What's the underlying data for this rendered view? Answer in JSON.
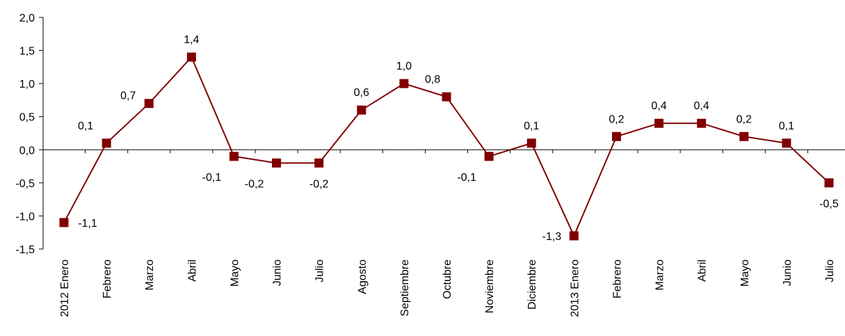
{
  "chart_data": {
    "type": "line",
    "title": "",
    "xlabel": "",
    "ylabel": "",
    "ylim": [
      -1.5,
      2.0
    ],
    "y_ticks": [
      "2,0",
      "1,5",
      "1,0",
      "0,5",
      "0,0",
      "-0,5",
      "-1,0",
      "-1,5"
    ],
    "y_tick_values": [
      2.0,
      1.5,
      1.0,
      0.5,
      0.0,
      -0.5,
      -1.0,
      -1.5
    ],
    "categories": [
      "2012 Enero",
      "Febrero",
      "Marzo",
      "Abril",
      "Mayo",
      "Junio",
      "Julio",
      "Agosto",
      "Septiembre",
      "Octubre",
      "Noviembre",
      "Diciembre",
      "2013 Enero",
      "Febrero",
      "Marzo",
      "Abril",
      "Mayo",
      "Junio",
      "Julio"
    ],
    "series": [
      {
        "values": [
          -1.1,
          0.1,
          0.7,
          1.4,
          -0.1,
          -0.2,
          -0.2,
          0.6,
          1.0,
          0.8,
          -0.1,
          0.1,
          -1.3,
          0.2,
          0.4,
          0.4,
          0.2,
          0.1,
          -0.5
        ],
        "labels": [
          "-1,1",
          "0,1",
          "0,7",
          "1,4",
          "-0,1",
          "-0,2",
          "-0,2",
          "0,6",
          "1,0",
          "0,8",
          "-0,1",
          "0,1",
          "-1,3",
          "0,2",
          "0,4",
          "0,4",
          "0,2",
          "0,1",
          "-0,5"
        ],
        "color": "#800000"
      }
    ],
    "grid": false,
    "legend": "none",
    "x_tick_labels_rotated": true
  }
}
